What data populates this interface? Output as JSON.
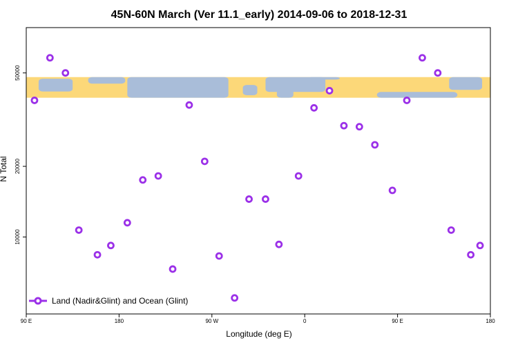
{
  "chart_data": {
    "type": "scatter",
    "title": "45N-60N March (Ver 11.1_early)   2014-09-06 to 2018-12-31",
    "xlabel": "Longitude (deg E)",
    "ylabel": "N Total",
    "x_ticks": [
      {
        "value": 90,
        "label": "90 E"
      },
      {
        "value": 180,
        "label": "180"
      },
      {
        "value": 270,
        "label": "90 W"
      },
      {
        "value": 360,
        "label": "0"
      },
      {
        "value": 450,
        "label": "90 E"
      },
      {
        "value": 540,
        "label": "180"
      }
    ],
    "y_ticks": [
      {
        "value": 10000,
        "label": "10000"
      },
      {
        "value": 20000,
        "label": "20000"
      },
      {
        "value": 50000,
        "label": "50000"
      }
    ],
    "xlim": [
      90,
      540
    ],
    "ylim": [
      4700,
      78000
    ],
    "y_scale": "log",
    "grid": false,
    "legend_position": "bottom-left",
    "series": [
      {
        "name": "Land (Nadir&Glint) and Ocean (Glint)",
        "color": "#9b30e8",
        "marker": "open-circle",
        "points": [
          {
            "x": 98,
            "y": 38200
          },
          {
            "x": 113,
            "y": 58000
          },
          {
            "x": 128,
            "y": 50000
          },
          {
            "x": 141,
            "y": 10700
          },
          {
            "x": 159,
            "y": 8400
          },
          {
            "x": 172,
            "y": 9200
          },
          {
            "x": 188,
            "y": 11500
          },
          {
            "x": 203,
            "y": 17500
          },
          {
            "x": 218,
            "y": 18200
          },
          {
            "x": 232,
            "y": 7300
          },
          {
            "x": 248,
            "y": 36500
          },
          {
            "x": 263,
            "y": 21000
          },
          {
            "x": 277,
            "y": 8300
          },
          {
            "x": 292,
            "y": 5500
          },
          {
            "x": 306,
            "y": 14500
          },
          {
            "x": 322,
            "y": 14500
          },
          {
            "x": 335,
            "y": 9300
          },
          {
            "x": 354,
            "y": 18200
          },
          {
            "x": 369,
            "y": 35500
          },
          {
            "x": 384,
            "y": 42000
          },
          {
            "x": 398,
            "y": 29800
          },
          {
            "x": 413,
            "y": 29500
          },
          {
            "x": 428,
            "y": 24700
          },
          {
            "x": 445,
            "y": 15800
          },
          {
            "x": 459,
            "y": 38200
          },
          {
            "x": 474,
            "y": 58000
          },
          {
            "x": 489,
            "y": 50000
          },
          {
            "x": 502,
            "y": 10700
          },
          {
            "x": 521,
            "y": 8400
          },
          {
            "x": 530,
            "y": 9200
          }
        ]
      }
    ],
    "map_strip": {
      "y_top": 48000,
      "y_bottom": 39200,
      "ocean_color": "#a9bdd9",
      "land_color": "#fcd879"
    }
  }
}
